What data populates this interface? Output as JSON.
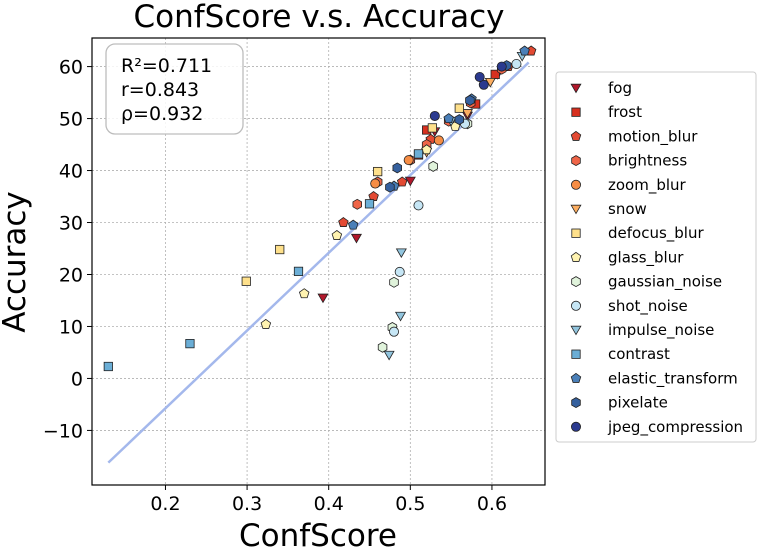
{
  "chart_data": {
    "type": "scatter",
    "title": "ConfScore  v.s.  Accuracy",
    "xlabel": "ConfScore",
    "ylabel": "Accuracy",
    "xlim": [
      0.11,
      0.665
    ],
    "ylim": [
      -20.5,
      65.5
    ],
    "xticks": [
      0.2,
      0.3,
      0.4,
      0.5,
      0.6
    ],
    "yticks": [
      -10,
      0,
      10,
      20,
      30,
      40,
      50,
      60
    ],
    "grid": true,
    "legend_position": "right",
    "stats": [
      "R²=0.711",
      "r=0.843",
      "ρ=0.932"
    ],
    "fit_line": {
      "x": [
        0.13,
        0.645
      ],
      "y": [
        -16.2,
        60.8
      ],
      "color": "#a4b8ec"
    },
    "series": [
      {
        "name": "fog",
        "marker": "tri_down",
        "color": "#b2182b",
        "points": [
          [
            0.393,
            15.5
          ],
          [
            0.434,
            27.0
          ],
          [
            0.5,
            38.0
          ],
          [
            0.53,
            47.5
          ],
          [
            0.57,
            50.5
          ],
          [
            0.607,
            58.5
          ]
        ]
      },
      {
        "name": "frost",
        "marker": "square",
        "color": "#d7301f",
        "points": [
          [
            0.51,
            43.0
          ],
          [
            0.52,
            47.8
          ],
          [
            0.58,
            52.8
          ],
          [
            0.604,
            58.5
          ]
        ]
      },
      {
        "name": "motion_blur",
        "marker": "pentagon",
        "color": "#e34a33",
        "points": [
          [
            0.418,
            30.0
          ],
          [
            0.455,
            35.0
          ],
          [
            0.49,
            37.8
          ],
          [
            0.525,
            46.0
          ],
          [
            0.62,
            60.0
          ],
          [
            0.648,
            63.0
          ]
        ]
      },
      {
        "name": "brightness",
        "marker": "hexagon",
        "color": "#ef6548",
        "points": [
          [
            0.435,
            33.5
          ],
          [
            0.46,
            37.8
          ],
          [
            0.5,
            42.0
          ],
          [
            0.52,
            45.0
          ],
          [
            0.547,
            49.5
          ],
          [
            0.574,
            53.0
          ],
          [
            0.612,
            59.5
          ]
        ]
      },
      {
        "name": "zoom_blur",
        "marker": "circle",
        "color": "#f68d45",
        "points": [
          [
            0.457,
            37.5
          ],
          [
            0.498,
            42.0
          ],
          [
            0.535,
            45.8
          ]
        ]
      },
      {
        "name": "snow",
        "marker": "tri_down",
        "color": "#fdae61",
        "points": [
          [
            0.52,
            43.5
          ],
          [
            0.57,
            51.0
          ],
          [
            0.598,
            57.0
          ]
        ]
      },
      {
        "name": "defocus_blur",
        "marker": "square",
        "color": "#fee08b",
        "points": [
          [
            0.299,
            18.7
          ],
          [
            0.34,
            24.8
          ],
          [
            0.46,
            39.8
          ],
          [
            0.527,
            48.2
          ],
          [
            0.56,
            52.0
          ]
        ]
      },
      {
        "name": "glass_blur",
        "marker": "pentagon",
        "color": "#fff3b0",
        "points": [
          [
            0.323,
            10.4
          ],
          [
            0.37,
            16.3
          ],
          [
            0.41,
            27.5
          ],
          [
            0.52,
            44.0
          ],
          [
            0.555,
            48.5
          ]
        ]
      },
      {
        "name": "gaussian_noise",
        "marker": "hexagon",
        "color": "#e0f3db",
        "points": [
          [
            0.466,
            6.0
          ],
          [
            0.478,
            9.8
          ],
          [
            0.48,
            18.5
          ],
          [
            0.528,
            40.8
          ],
          [
            0.57,
            49.0
          ]
        ]
      },
      {
        "name": "shot_noise",
        "marker": "circle",
        "color": "#c6e6f5",
        "points": [
          [
            0.48,
            9.0
          ],
          [
            0.487,
            20.5
          ],
          [
            0.51,
            33.3
          ],
          [
            0.567,
            49.0
          ],
          [
            0.63,
            60.5
          ]
        ]
      },
      {
        "name": "impulse_noise",
        "marker": "tri_down",
        "color": "#92c5de",
        "points": [
          [
            0.474,
            4.5
          ],
          [
            0.488,
            12.0
          ],
          [
            0.489,
            24.2
          ],
          [
            0.55,
            49.5
          ],
          [
            0.637,
            62.0
          ]
        ]
      },
      {
        "name": "contrast",
        "marker": "square",
        "color": "#6baed6",
        "points": [
          [
            0.13,
            2.3
          ],
          [
            0.23,
            6.7
          ],
          [
            0.363,
            20.6
          ],
          [
            0.45,
            33.6
          ],
          [
            0.51,
            43.2
          ]
        ]
      },
      {
        "name": "elastic_transform",
        "marker": "pentagon",
        "color": "#4a7fb8",
        "points": [
          [
            0.43,
            29.5
          ],
          [
            0.48,
            37.0
          ],
          [
            0.547,
            50.0
          ],
          [
            0.575,
            53.8
          ],
          [
            0.64,
            63.0
          ]
        ]
      },
      {
        "name": "pixelate",
        "marker": "hexagon",
        "color": "#35609e",
        "points": [
          [
            0.475,
            36.8
          ],
          [
            0.484,
            40.5
          ],
          [
            0.56,
            49.8
          ],
          [
            0.573,
            53.5
          ],
          [
            0.618,
            60.2
          ]
        ]
      },
      {
        "name": "jpeg_compression",
        "marker": "circle",
        "color": "#2b3a8f",
        "points": [
          [
            0.53,
            50.5
          ],
          [
            0.59,
            56.5
          ],
          [
            0.585,
            58.0
          ],
          [
            0.612,
            60.0
          ]
        ]
      }
    ]
  }
}
